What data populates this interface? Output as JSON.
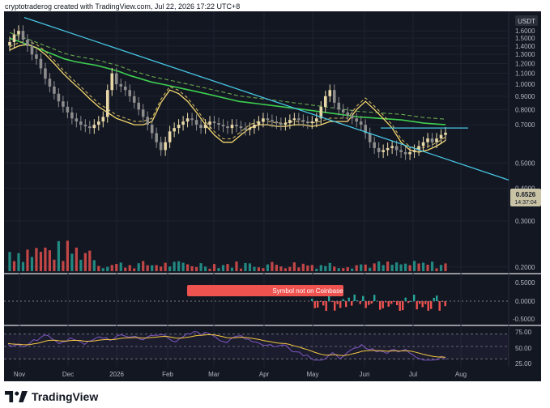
{
  "attribution": "cryptotraderog created with TradingView.com, Jul 22, 2026 17:22 UTC+8",
  "brand": "TradingView",
  "colors": {
    "background": "#131722",
    "price_up": "#e8d8a8",
    "price_down": "#8c8c8c",
    "ema_fast": "#f5d76e",
    "ema_dashed": "#c8b25a",
    "ma_green": "#3ecf4f",
    "ma_green_dashed": "#6aa84f",
    "trendline": "#47c6e4",
    "resistance": "#47c6e4",
    "volume_up": "#26a69a",
    "volume_down": "#ef5350",
    "hist_up": "#26a69a",
    "hist_down": "#ef5350",
    "rsi": "#7e57c2",
    "rsi_signal": "#f5c842",
    "notice_bg": "#ef5350"
  },
  "main_pane": {
    "currency": "USDT",
    "price_label": "0.6526",
    "countdown_label": "14:37:04"
  },
  "mid_pane": {
    "notice": "Symbol not on Coinbase",
    "ticks": [
      "0.5000",
      "0.0000",
      "-0.5000"
    ]
  },
  "rsi_pane": {
    "ticks": [
      "75.00",
      "50.00",
      "25.00"
    ]
  },
  "chart_data": {
    "type": "candlestick",
    "title": "",
    "xlabel": "",
    "ylabel": "",
    "scale": "log",
    "ylim": [
      0.19,
      1.9
    ],
    "x_tick_labels": [
      "Nov",
      "Dec",
      "2026",
      "Feb",
      "Mar",
      "Apr",
      "May",
      "Jun",
      "Jul",
      "Aug"
    ],
    "y_tick_labels": [
      "1.6000",
      "1.5000",
      "1.4000",
      "1.3000",
      "1.2000",
      "1.1000",
      "1.0000",
      "0.9000",
      "0.8000",
      "0.7000",
      "0.5000",
      "0.4000",
      "0.3000",
      "0.2000"
    ],
    "y_ticks": [
      1.6,
      1.5,
      1.4,
      1.3,
      1.2,
      1.1,
      1.0,
      0.9,
      0.8,
      0.7,
      0.5,
      0.4,
      0.3,
      0.2
    ],
    "current_price": 0.6526,
    "resistance_level": 0.68,
    "close_series": [
      1.45,
      1.55,
      1.6,
      1.48,
      1.4,
      1.3,
      1.25,
      1.15,
      1.05,
      0.98,
      0.92,
      0.86,
      0.82,
      0.78,
      0.74,
      0.72,
      0.7,
      0.69,
      0.68,
      0.7,
      0.72,
      0.75,
      0.95,
      1.1,
      1.0,
      0.98,
      0.95,
      0.9,
      0.85,
      0.8,
      0.75,
      0.7,
      0.65,
      0.6,
      0.56,
      0.6,
      0.66,
      0.68,
      0.7,
      0.72,
      0.74,
      0.73,
      0.7,
      0.68,
      0.7,
      0.72,
      0.71,
      0.7,
      0.69,
      0.68,
      0.7,
      0.69,
      0.68,
      0.67,
      0.68,
      0.7,
      0.72,
      0.74,
      0.73,
      0.72,
      0.71,
      0.7,
      0.71,
      0.73,
      0.74,
      0.73,
      0.72,
      0.71,
      0.72,
      0.74,
      0.82,
      0.9,
      0.95,
      0.85,
      0.8,
      0.78,
      0.76,
      0.74,
      0.72,
      0.7,
      0.65,
      0.6,
      0.57,
      0.55,
      0.56,
      0.57,
      0.58,
      0.56,
      0.55,
      0.54,
      0.55,
      0.56,
      0.58,
      0.6,
      0.62,
      0.6,
      0.62,
      0.64,
      0.6526
    ],
    "series": [
      {
        "name": "",
        "role": "fast-ma",
        "values": [
          1.35,
          1.4,
          1.42,
          1.38,
          1.3,
          1.2,
          1.1,
          1.02,
          0.95,
          0.88,
          0.82,
          0.78,
          0.74,
          0.72,
          0.7,
          0.7,
          0.72,
          0.85,
          0.95,
          0.92,
          0.86,
          0.78,
          0.7,
          0.64,
          0.6,
          0.6,
          0.64,
          0.68,
          0.7,
          0.7,
          0.69,
          0.69,
          0.7,
          0.7,
          0.69,
          0.7,
          0.72,
          0.72,
          0.72,
          0.8,
          0.86,
          0.8,
          0.74,
          0.68,
          0.6,
          0.56,
          0.55,
          0.56,
          0.58,
          0.61
        ]
      },
      {
        "name": "",
        "role": "slow-ma",
        "values": [
          1.5,
          1.45,
          1.4,
          1.35,
          1.3,
          1.25,
          1.22,
          1.2,
          1.18,
          1.15,
          1.12,
          1.08,
          1.05,
          1.02,
          1.0,
          0.98,
          0.96,
          0.94,
          0.92,
          0.9,
          0.88,
          0.86,
          0.85,
          0.84,
          0.83,
          0.82,
          0.81,
          0.8,
          0.79,
          0.78,
          0.77,
          0.76,
          0.75,
          0.745,
          0.74,
          0.735,
          0.73,
          0.72,
          0.71,
          0.705,
          0.7
        ]
      }
    ],
    "indicators": {
      "volume": {
        "type": "bar"
      },
      "histogram": {
        "type": "bar",
        "ylim": [
          -0.6,
          0.6
        ],
        "ticks": [
          0.5,
          0.0,
          -0.5
        ]
      },
      "rsi": {
        "type": "line",
        "ylim": [
          20,
          80
        ],
        "ticks": [
          75,
          50,
          25
        ]
      }
    }
  }
}
